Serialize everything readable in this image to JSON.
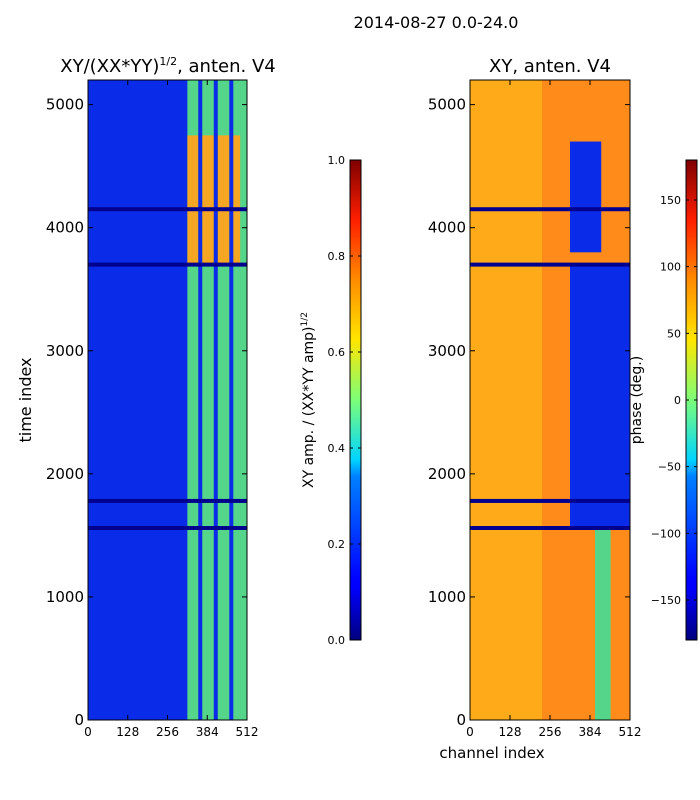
{
  "figure": {
    "suptitle": "2014-08-27 0.0-24.0"
  },
  "chart_data": [
    {
      "type": "heatmap",
      "title_prefix": "XY/(XX*YY)",
      "title_sup": "1/2",
      "title_suffix": ", anten. V4",
      "xlabel": "",
      "ylabel": "time index",
      "xlim": [
        0,
        512
      ],
      "ylim": [
        0,
        5200
      ],
      "xticks": [
        0,
        128,
        256,
        384,
        512
      ],
      "yticks": [
        0,
        1000,
        2000,
        3000,
        4000,
        5000
      ],
      "colorbar": {
        "label_prefix": "XY amp. / (XX*YY amp)",
        "label_sup": "1/2",
        "min": 0.0,
        "max": 1.0,
        "ticks": [
          0.0,
          0.2,
          0.4,
          0.6,
          0.8,
          1.0
        ],
        "tick_labels": [
          "0.0",
          "0.2",
          "0.4",
          "0.6",
          "0.8",
          "1.0"
        ]
      }
    },
    {
      "type": "heatmap",
      "title_prefix": "XY, anten. V4",
      "title_sup": "",
      "title_suffix": "",
      "xlabel": "channel index",
      "ylabel": "",
      "xlim": [
        0,
        512
      ],
      "ylim": [
        0,
        5200
      ],
      "xticks": [
        0,
        128,
        256,
        384,
        512
      ],
      "yticks": [
        0,
        1000,
        2000,
        3000,
        4000,
        5000
      ],
      "colorbar": {
        "label_prefix": "phase (deg.)",
        "label_sup": "",
        "min": -180,
        "max": 180,
        "ticks": [
          -150,
          -100,
          -50,
          0,
          50,
          100,
          150
        ],
        "tick_labels": [
          "−150",
          "−100",
          "−50",
          "0",
          "50",
          "100",
          "150"
        ]
      }
    }
  ]
}
